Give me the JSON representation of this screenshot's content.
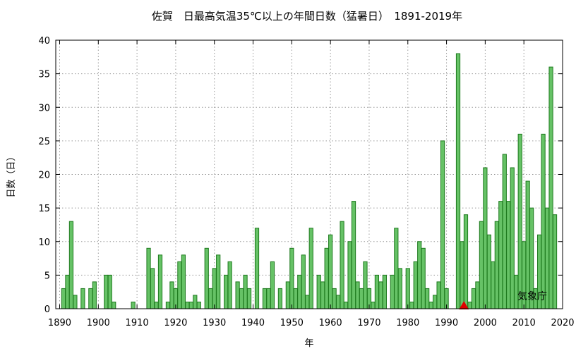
{
  "chart_data": {
    "type": "bar",
    "title": "佐賀　日最高気温35℃以上の年間日数（猛暑日）　1891-2019年",
    "xlabel": "年",
    "ylabel": "日数（日）",
    "credit": "気象庁",
    "xlim": [
      1889,
      2020
    ],
    "ylim": [
      0,
      40
    ],
    "x_ticks": [
      1890,
      1900,
      1910,
      1920,
      1930,
      1940,
      1950,
      1960,
      1970,
      1980,
      1990,
      2000,
      2010,
      2020
    ],
    "y_ticks": [
      0,
      5,
      10,
      15,
      20,
      25,
      30,
      35,
      40
    ],
    "grid": true,
    "colors": {
      "bar_fill": "#66c266",
      "bar_stroke": "#1e7a1e",
      "marker": "#e00000"
    },
    "marker_year": 1994.5,
    "x": [
      1891,
      1892,
      1893,
      1894,
      1895,
      1896,
      1897,
      1898,
      1899,
      1900,
      1901,
      1902,
      1903,
      1904,
      1905,
      1906,
      1907,
      1908,
      1909,
      1910,
      1911,
      1912,
      1913,
      1914,
      1915,
      1916,
      1917,
      1918,
      1919,
      1920,
      1921,
      1922,
      1923,
      1924,
      1925,
      1926,
      1927,
      1928,
      1929,
      1930,
      1931,
      1932,
      1933,
      1934,
      1935,
      1936,
      1937,
      1938,
      1939,
      1940,
      1941,
      1942,
      1943,
      1944,
      1945,
      1946,
      1947,
      1948,
      1949,
      1950,
      1951,
      1952,
      1953,
      1954,
      1955,
      1956,
      1957,
      1958,
      1959,
      1960,
      1961,
      1962,
      1963,
      1964,
      1965,
      1966,
      1967,
      1968,
      1969,
      1970,
      1971,
      1972,
      1973,
      1974,
      1975,
      1976,
      1977,
      1978,
      1979,
      1980,
      1981,
      1982,
      1983,
      1984,
      1985,
      1986,
      1987,
      1988,
      1989,
      1990,
      1991,
      1992,
      1993,
      1994,
      1995,
      1996,
      1997,
      1998,
      1999,
      2000,
      2001,
      2002,
      2003,
      2004,
      2005,
      2006,
      2007,
      2008,
      2009,
      2010,
      2011,
      2012,
      2013,
      2014,
      2015,
      2016,
      2017,
      2018,
      2019
    ],
    "values": [
      3,
      5,
      13,
      2,
      0,
      3,
      0,
      3,
      4,
      0,
      0,
      5,
      5,
      1,
      0,
      0,
      0,
      0,
      1,
      0,
      0,
      0,
      9,
      6,
      1,
      8,
      0,
      1,
      4,
      3,
      7,
      8,
      1,
      1,
      2,
      1,
      0,
      9,
      3,
      6,
      8,
      0,
      5,
      7,
      0,
      4,
      3,
      5,
      3,
      0,
      12,
      0,
      3,
      3,
      7,
      0,
      3,
      0,
      4,
      9,
      3,
      5,
      8,
      2,
      12,
      0,
      5,
      4,
      9,
      11,
      3,
      2,
      13,
      1,
      10,
      16,
      4,
      3,
      7,
      3,
      1,
      5,
      4,
      5,
      0,
      5,
      12,
      6,
      0,
      6,
      1,
      7,
      10,
      9,
      3,
      1,
      2,
      4,
      25,
      3,
      0,
      0,
      38,
      10,
      14,
      1,
      3,
      4,
      13,
      21,
      11,
      7,
      13,
      16,
      23,
      16,
      21,
      5,
      26,
      10,
      19,
      15,
      3,
      11,
      26,
      15,
      36,
      14,
      0
    ]
  }
}
